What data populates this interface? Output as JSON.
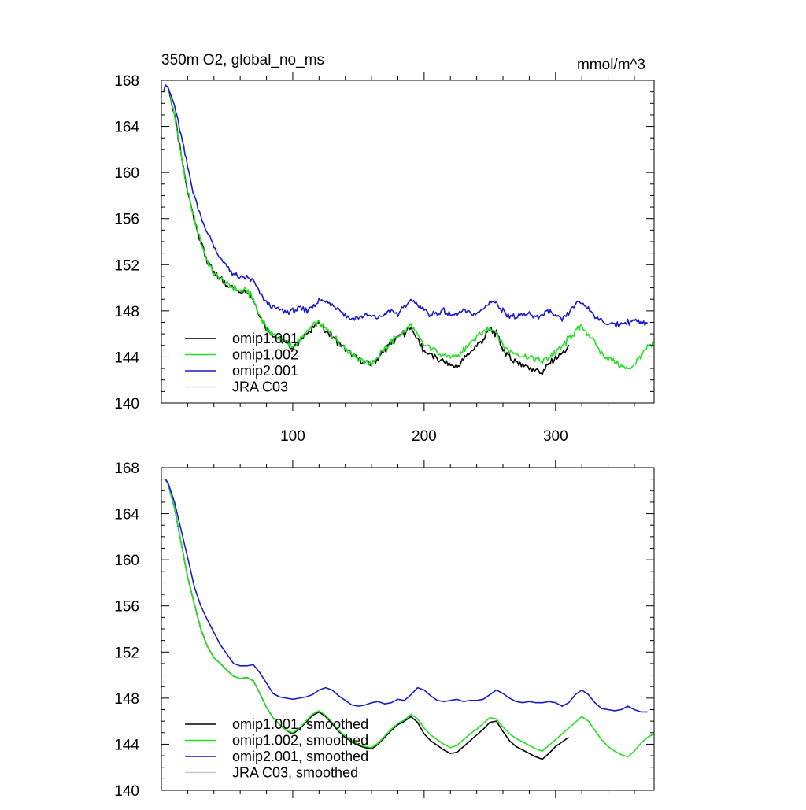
{
  "chart_data": [
    {
      "type": "line",
      "title": "350m O2, global_no_ms",
      "units": "mmol/m^3",
      "xlim": [
        0,
        375
      ],
      "ylim": [
        140,
        168
      ],
      "y_ticks": [
        140,
        144,
        148,
        152,
        156,
        160,
        164,
        168
      ],
      "y_tick_labels": [
        "140",
        "144",
        "148",
        "152",
        "156",
        "160",
        "164",
        "168"
      ],
      "x_ticks": [
        100,
        200,
        300
      ],
      "x_tick_labels": [
        "100",
        "200",
        "300"
      ],
      "legend_position": "bottom-left",
      "series": [
        {
          "name": "omip1.001",
          "color": "#000000",
          "jitter": 0.35,
          "x": [
            1,
            2,
            3,
            5,
            10,
            15,
            20,
            25,
            30,
            35,
            40,
            45,
            50,
            55,
            60,
            65,
            70,
            75,
            80,
            85,
            90,
            95,
            100,
            105,
            110,
            115,
            120,
            125,
            130,
            135,
            140,
            145,
            150,
            155,
            160,
            165,
            170,
            175,
            180,
            185,
            190,
            195,
            200,
            205,
            210,
            215,
            220,
            225,
            230,
            235,
            240,
            245,
            250,
            255,
            260,
            265,
            270,
            275,
            280,
            285,
            290,
            295,
            300,
            305,
            310
          ],
          "y": [
            167.0,
            167.1,
            167.6,
            167.4,
            165.0,
            161.5,
            158.3,
            156.0,
            154.0,
            152.3,
            151.2,
            150.8,
            150.3,
            150.0,
            149.7,
            149.8,
            149.0,
            147.6,
            146.5,
            145.9,
            145.6,
            145.2,
            144.8,
            145.3,
            145.9,
            146.6,
            146.9,
            146.3,
            145.8,
            145.2,
            144.7,
            144.2,
            143.8,
            143.5,
            143.4,
            143.9,
            144.6,
            145.2,
            145.7,
            146.1,
            146.6,
            145.5,
            144.5,
            144.2,
            143.8,
            143.6,
            143.3,
            143.1,
            143.8,
            144.4,
            145.0,
            145.5,
            146.4,
            146.0,
            144.7,
            143.9,
            143.6,
            143.3,
            143.1,
            142.9,
            142.6,
            143.4,
            143.9,
            144.3,
            144.8
          ]
        },
        {
          "name": "omip1.002",
          "color": "#22e022",
          "jitter": 0.35,
          "x": [
            1,
            2,
            3,
            5,
            10,
            15,
            20,
            25,
            30,
            35,
            40,
            45,
            50,
            55,
            60,
            65,
            70,
            75,
            80,
            85,
            90,
            95,
            100,
            105,
            110,
            115,
            120,
            125,
            130,
            135,
            140,
            145,
            150,
            155,
            160,
            165,
            170,
            175,
            180,
            185,
            190,
            195,
            200,
            205,
            210,
            215,
            220,
            225,
            230,
            235,
            240,
            245,
            250,
            255,
            260,
            265,
            270,
            275,
            280,
            285,
            290,
            295,
            300,
            305,
            310,
            315,
            320,
            325,
            330,
            335,
            340,
            345,
            350,
            355,
            360,
            365,
            370,
            375
          ],
          "y": [
            167.0,
            167.1,
            167.6,
            167.4,
            165.0,
            161.5,
            158.3,
            156.0,
            154.0,
            152.3,
            151.2,
            150.8,
            150.3,
            150.0,
            149.7,
            149.8,
            149.0,
            147.6,
            146.5,
            145.9,
            145.6,
            145.2,
            144.9,
            145.4,
            146.0,
            146.7,
            147.0,
            146.4,
            145.9,
            145.3,
            144.8,
            144.3,
            143.9,
            143.6,
            143.5,
            144.0,
            144.7,
            145.3,
            145.8,
            146.2,
            146.8,
            145.8,
            145.0,
            144.8,
            144.5,
            144.2,
            144.0,
            143.9,
            144.6,
            145.2,
            145.7,
            146.1,
            146.6,
            146.2,
            145.0,
            144.5,
            144.3,
            144.1,
            144.0,
            143.8,
            143.6,
            144.0,
            144.4,
            144.9,
            145.6,
            146.2,
            146.6,
            146.0,
            145.2,
            144.3,
            143.9,
            143.6,
            143.2,
            142.9,
            143.4,
            144.1,
            144.8,
            145.1
          ]
        },
        {
          "name": "omip2.001",
          "color": "#1a1acc",
          "jitter": 0.3,
          "x": [
            1,
            2,
            3,
            5,
            10,
            15,
            20,
            25,
            30,
            35,
            40,
            45,
            50,
            55,
            60,
            65,
            70,
            75,
            80,
            85,
            90,
            95,
            100,
            105,
            110,
            115,
            120,
            125,
            130,
            135,
            140,
            145,
            150,
            155,
            160,
            165,
            170,
            175,
            180,
            185,
            190,
            195,
            200,
            205,
            210,
            215,
            220,
            225,
            230,
            235,
            240,
            245,
            250,
            255,
            260,
            265,
            270,
            275,
            280,
            285,
            290,
            295,
            300,
            305,
            310,
            315,
            320,
            325,
            330,
            335,
            340,
            345,
            350,
            355,
            360,
            365,
            370
          ],
          "y": [
            167.0,
            167.1,
            167.6,
            167.4,
            165.8,
            163.2,
            160.5,
            158.0,
            156.2,
            154.8,
            153.6,
            152.5,
            151.8,
            151.2,
            150.8,
            150.9,
            150.6,
            149.5,
            148.7,
            148.3,
            148.1,
            147.9,
            148.0,
            148.2,
            148.0,
            148.4,
            148.9,
            148.8,
            148.6,
            148.2,
            147.6,
            147.3,
            147.4,
            147.6,
            147.5,
            147.4,
            147.7,
            148.0,
            147.7,
            148.3,
            149.0,
            148.6,
            148.0,
            147.7,
            147.8,
            148.0,
            147.6,
            147.7,
            148.0,
            147.8,
            147.7,
            148.2,
            148.8,
            148.7,
            148.0,
            147.6,
            147.4,
            147.6,
            147.7,
            147.5,
            147.6,
            148.0,
            147.5,
            147.2,
            147.8,
            148.6,
            148.7,
            148.2,
            147.6,
            147.1,
            146.9,
            146.8,
            146.9,
            147.0,
            147.2,
            146.9,
            146.8
          ]
        },
        {
          "name": "JRA C03",
          "color": "#c8c8c8",
          "x": [],
          "y": []
        }
      ]
    },
    {
      "type": "line",
      "title": "",
      "xlim": [
        0,
        375
      ],
      "ylim": [
        140,
        168
      ],
      "y_ticks": [
        140,
        144,
        148,
        152,
        156,
        160,
        164,
        168
      ],
      "y_tick_labels": [
        "140",
        "144",
        "148",
        "152",
        "156",
        "160",
        "164",
        "168"
      ],
      "x_ticks": [
        100,
        200,
        300
      ],
      "x_tick_labels": [],
      "legend_position": "bottom-left",
      "series": [
        {
          "name": "omip1.001, smoothed",
          "color": "#000000",
          "jitter": 0,
          "x": [
            3,
            5,
            10,
            15,
            20,
            25,
            30,
            35,
            40,
            45,
            50,
            55,
            60,
            65,
            70,
            75,
            80,
            85,
            90,
            95,
            100,
            105,
            110,
            115,
            120,
            125,
            130,
            135,
            140,
            145,
            150,
            155,
            160,
            165,
            170,
            175,
            180,
            185,
            190,
            195,
            200,
            205,
            210,
            215,
            220,
            225,
            230,
            235,
            240,
            245,
            250,
            255,
            260,
            265,
            270,
            275,
            280,
            285,
            290,
            295,
            300,
            305,
            310
          ],
          "y": [
            167.0,
            166.6,
            164.5,
            161.5,
            158.5,
            156.2,
            154.0,
            152.5,
            151.5,
            151.0,
            150.4,
            149.9,
            149.7,
            149.8,
            149.5,
            148.4,
            147.2,
            146.3,
            145.7,
            145.2,
            144.9,
            145.3,
            145.9,
            146.5,
            146.8,
            146.4,
            145.8,
            145.1,
            144.6,
            144.2,
            143.9,
            143.7,
            143.6,
            144.0,
            144.6,
            145.2,
            145.7,
            146.0,
            146.4,
            145.9,
            144.9,
            144.3,
            143.9,
            143.5,
            143.2,
            143.3,
            143.8,
            144.3,
            144.8,
            145.3,
            145.9,
            146.0,
            145.1,
            144.3,
            143.8,
            143.5,
            143.2,
            142.9,
            142.7,
            143.2,
            143.8,
            144.2,
            144.6
          ]
        },
        {
          "name": "omip1.002, smoothed",
          "color": "#22e022",
          "jitter": 0,
          "x": [
            3,
            5,
            10,
            15,
            20,
            25,
            30,
            35,
            40,
            45,
            50,
            55,
            60,
            65,
            70,
            75,
            80,
            85,
            90,
            95,
            100,
            105,
            110,
            115,
            120,
            125,
            130,
            135,
            140,
            145,
            150,
            155,
            160,
            165,
            170,
            175,
            180,
            185,
            190,
            195,
            200,
            205,
            210,
            215,
            220,
            225,
            230,
            235,
            240,
            245,
            250,
            255,
            260,
            265,
            270,
            275,
            280,
            285,
            290,
            295,
            300,
            305,
            310,
            315,
            320,
            325,
            330,
            335,
            340,
            345,
            350,
            355,
            360,
            365,
            370,
            375
          ],
          "y": [
            167.0,
            166.6,
            164.5,
            161.5,
            158.5,
            156.2,
            154.0,
            152.5,
            151.5,
            151.0,
            150.4,
            149.9,
            149.7,
            149.8,
            149.5,
            148.4,
            147.2,
            146.3,
            145.7,
            145.2,
            145.0,
            145.4,
            146.0,
            146.6,
            146.9,
            146.5,
            145.9,
            145.2,
            144.7,
            144.3,
            144.0,
            143.8,
            143.7,
            144.1,
            144.7,
            145.3,
            145.8,
            146.1,
            146.6,
            146.2,
            145.4,
            144.8,
            144.4,
            144.0,
            143.7,
            143.9,
            144.4,
            144.9,
            145.3,
            145.8,
            146.3,
            146.2,
            145.5,
            144.9,
            144.5,
            144.2,
            143.9,
            143.6,
            143.4,
            143.9,
            144.4,
            144.9,
            145.4,
            145.9,
            146.4,
            146.0,
            145.2,
            144.4,
            143.8,
            143.4,
            143.1,
            142.9,
            143.4,
            144.1,
            144.6,
            144.9
          ]
        },
        {
          "name": "omip2.001, smoothed",
          "color": "#1a1acc",
          "jitter": 0,
          "x": [
            3,
            5,
            10,
            15,
            20,
            25,
            30,
            35,
            40,
            45,
            50,
            55,
            60,
            65,
            70,
            75,
            80,
            85,
            90,
            95,
            100,
            105,
            110,
            115,
            120,
            125,
            130,
            135,
            140,
            145,
            150,
            155,
            160,
            165,
            170,
            175,
            180,
            185,
            190,
            195,
            200,
            205,
            210,
            215,
            220,
            225,
            230,
            235,
            240,
            245,
            250,
            255,
            260,
            265,
            270,
            275,
            280,
            285,
            290,
            295,
            300,
            305,
            310,
            315,
            320,
            325,
            330,
            335,
            340,
            345,
            350,
            355,
            360,
            365,
            370
          ],
          "y": [
            167.0,
            166.7,
            165.0,
            162.6,
            160.2,
            157.7,
            156.0,
            154.8,
            153.7,
            152.6,
            151.8,
            151.0,
            150.8,
            150.8,
            150.9,
            150.2,
            149.3,
            148.4,
            148.1,
            148.0,
            147.9,
            148.0,
            148.1,
            148.3,
            148.7,
            148.9,
            148.7,
            148.2,
            147.8,
            147.4,
            147.3,
            147.4,
            147.6,
            147.7,
            147.5,
            147.6,
            147.9,
            147.8,
            148.3,
            148.9,
            148.7,
            148.2,
            147.8,
            147.7,
            147.8,
            147.9,
            147.7,
            147.8,
            147.8,
            147.9,
            148.3,
            148.7,
            148.4,
            148.0,
            147.7,
            147.6,
            147.7,
            147.6,
            147.6,
            147.7,
            147.6,
            147.3,
            147.6,
            148.3,
            148.7,
            148.3,
            147.6,
            147.1,
            147.0,
            146.9,
            147.0,
            147.3,
            147.0,
            146.8,
            146.8
          ]
        },
        {
          "name": "JRA C03, smoothed",
          "color": "#c8c8c8",
          "x": [],
          "y": []
        }
      ]
    }
  ]
}
